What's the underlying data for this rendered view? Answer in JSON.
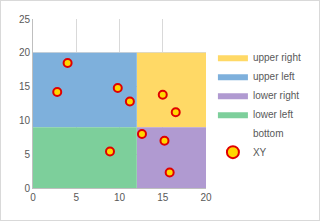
{
  "chart_data": {
    "type": "scatter",
    "xlim": [
      0,
      20
    ],
    "xticks": [
      0,
      5,
      10,
      15,
      20
    ],
    "ylim": [
      0,
      25
    ],
    "yticks": [
      0,
      5,
      10,
      15,
      20,
      25
    ],
    "grid": true,
    "legend": "right",
    "series": [
      {
        "name": "upper right",
        "type": "area",
        "color": "#ffd966",
        "x": [
          12,
          20
        ],
        "values": [
          20,
          20
        ],
        "base": [
          9,
          9
        ]
      },
      {
        "name": "upper left",
        "type": "area",
        "color": "#7eb0dc",
        "x": [
          0,
          12
        ],
        "values": [
          20,
          20
        ],
        "base": [
          9,
          9
        ]
      },
      {
        "name": "lower right",
        "type": "area",
        "color": "#b09ad1",
        "x": [
          12,
          20
        ],
        "values": [
          9,
          9
        ],
        "base": [
          0,
          0
        ]
      },
      {
        "name": "lower left",
        "type": "area",
        "color": "#7dcf9b",
        "x": [
          0,
          12
        ],
        "values": [
          9,
          9
        ],
        "base": [
          0,
          0
        ]
      },
      {
        "name": "bottom",
        "type": "line",
        "color": "none",
        "line_style": "none",
        "x": [
          0,
          20
        ],
        "values": [
          9,
          9
        ]
      },
      {
        "name": "XY",
        "type": "scatter",
        "color": "#e00000",
        "marker": "circle",
        "x": [
          4,
          2.8,
          9.8,
          11.2,
          15,
          16.5,
          12.6,
          15.2,
          8.9,
          15.8
        ],
        "values": [
          18.5,
          14.2,
          14.8,
          12.8,
          13.8,
          11.2,
          8,
          7,
          5.4,
          2.3
        ]
      }
    ]
  }
}
